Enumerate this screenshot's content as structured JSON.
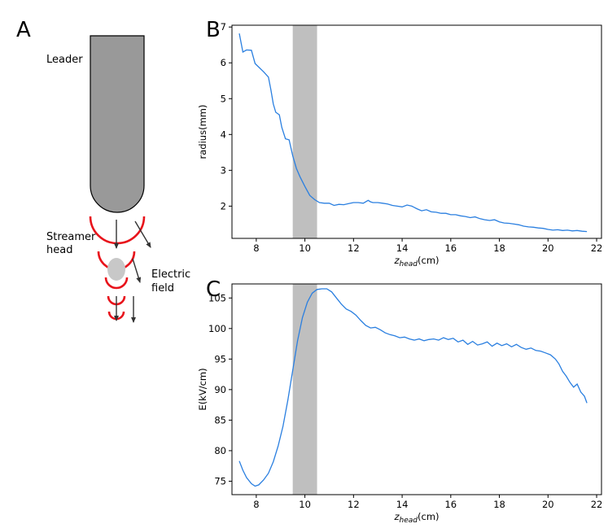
{
  "panels": {
    "a": {
      "letter": "A",
      "labels": {
        "leader": "Leader",
        "streamer_line1": "Streamer",
        "streamer_line2": "head",
        "field_line1": "Electric",
        "field_line2": "field"
      },
      "colors": {
        "leader_fill": "#999999",
        "streamer_arc": "#e8131b",
        "head_fill": "#c8c8c8",
        "arrow": "#333333"
      }
    },
    "b": {
      "letter": "B"
    },
    "c": {
      "letter": "C"
    }
  },
  "chart_data": [
    {
      "type": "line",
      "panel": "B",
      "xlabel_main": "z",
      "xlabel_sub": "head",
      "xlabel_unit": "(cm)",
      "ylabel": "radius(mm)",
      "xlim": [
        7.0,
        22.2
      ],
      "ylim": [
        1.1,
        7.05
      ],
      "xticks": [
        8,
        10,
        12,
        14,
        16,
        18,
        20,
        22
      ],
      "yticks": [
        2,
        3,
        4,
        5,
        6,
        7
      ],
      "shaded_band": [
        9.5,
        10.5
      ],
      "band_color": "#bfbfbf",
      "line_color": "#2a7fe0",
      "grid": false,
      "x": [
        7.3,
        7.45,
        7.6,
        7.8,
        7.95,
        8.1,
        8.3,
        8.5,
        8.6,
        8.7,
        8.8,
        8.95,
        9.05,
        9.2,
        9.35,
        9.5,
        9.65,
        9.8,
        10.0,
        10.2,
        10.4,
        10.6,
        10.8,
        11.0,
        11.2,
        11.4,
        11.6,
        11.8,
        12.0,
        12.2,
        12.4,
        12.6,
        12.7,
        12.8,
        13.0,
        13.2,
        13.4,
        13.6,
        13.8,
        14.0,
        14.2,
        14.4,
        14.6,
        14.8,
        15.0,
        15.2,
        15.4,
        15.6,
        15.8,
        16.0,
        16.2,
        16.4,
        16.6,
        16.8,
        17.0,
        17.2,
        17.4,
        17.6,
        17.8,
        18.0,
        18.2,
        18.4,
        18.6,
        18.8,
        19.0,
        19.2,
        19.4,
        19.6,
        19.8,
        20.0,
        20.2,
        20.4,
        20.6,
        20.8,
        21.0,
        21.2,
        21.4,
        21.6
      ],
      "y": [
        6.82,
        6.3,
        6.36,
        6.35,
        5.98,
        5.88,
        5.75,
        5.6,
        5.25,
        4.85,
        4.62,
        4.55,
        4.2,
        3.88,
        3.85,
        3.4,
        3.05,
        2.82,
        2.55,
        2.3,
        2.18,
        2.1,
        2.08,
        2.08,
        2.02,
        2.05,
        2.04,
        2.07,
        2.1,
        2.1,
        2.08,
        2.16,
        2.12,
        2.1,
        2.1,
        2.08,
        2.06,
        2.02,
        2.0,
        1.98,
        2.03,
        2.0,
        1.93,
        1.87,
        1.9,
        1.84,
        1.83,
        1.8,
        1.8,
        1.76,
        1.76,
        1.73,
        1.71,
        1.68,
        1.7,
        1.65,
        1.62,
        1.6,
        1.62,
        1.56,
        1.53,
        1.52,
        1.5,
        1.48,
        1.44,
        1.42,
        1.41,
        1.39,
        1.38,
        1.35,
        1.33,
        1.34,
        1.32,
        1.33,
        1.31,
        1.32,
        1.3,
        1.29
      ]
    },
    {
      "type": "line",
      "panel": "C",
      "xlabel_main": "z",
      "xlabel_sub": "head",
      "xlabel_unit": "(cm)",
      "ylabel": "E(kV/cm)",
      "xlim": [
        7.0,
        22.2
      ],
      "ylim": [
        72.8,
        107.3
      ],
      "xticks": [
        8,
        10,
        12,
        14,
        16,
        18,
        20,
        22
      ],
      "yticks": [
        75,
        80,
        85,
        90,
        95,
        100,
        105
      ],
      "shaded_band": [
        9.5,
        10.5
      ],
      "band_color": "#bfbfbf",
      "line_color": "#2a7fe0",
      "grid": false,
      "x": [
        7.3,
        7.45,
        7.6,
        7.8,
        7.95,
        8.1,
        8.3,
        8.5,
        8.7,
        8.9,
        9.1,
        9.3,
        9.5,
        9.7,
        9.9,
        10.1,
        10.3,
        10.5,
        10.7,
        10.9,
        11.1,
        11.3,
        11.5,
        11.7,
        11.9,
        12.1,
        12.3,
        12.5,
        12.7,
        12.9,
        13.1,
        13.3,
        13.5,
        13.7,
        13.9,
        14.1,
        14.3,
        14.5,
        14.7,
        14.9,
        15.1,
        15.3,
        15.5,
        15.7,
        15.9,
        16.1,
        16.3,
        16.5,
        16.7,
        16.9,
        17.1,
        17.3,
        17.5,
        17.7,
        17.9,
        18.1,
        18.3,
        18.5,
        18.7,
        18.9,
        19.1,
        19.3,
        19.5,
        19.7,
        19.9,
        20.1,
        20.3,
        20.45,
        20.6,
        20.75,
        20.9,
        21.05,
        21.2,
        21.35,
        21.5,
        21.6
      ],
      "y": [
        78.3,
        76.8,
        75.6,
        74.6,
        74.2,
        74.4,
        75.2,
        76.3,
        78.2,
        80.8,
        84.0,
        88.3,
        93.2,
        98.0,
        101.8,
        104.3,
        105.8,
        106.4,
        106.5,
        106.5,
        106.0,
        105.0,
        104.0,
        103.2,
        102.8,
        102.2,
        101.3,
        100.5,
        100.1,
        100.2,
        99.8,
        99.3,
        99.0,
        98.8,
        98.5,
        98.6,
        98.3,
        98.1,
        98.3,
        98.0,
        98.2,
        98.3,
        98.1,
        98.5,
        98.2,
        98.4,
        97.8,
        98.1,
        97.4,
        97.9,
        97.3,
        97.5,
        97.8,
        97.1,
        97.6,
        97.2,
        97.5,
        97.0,
        97.4,
        96.9,
        96.6,
        96.8,
        96.4,
        96.3,
        96.0,
        95.7,
        95.0,
        94.2,
        93.0,
        92.2,
        91.2,
        90.4,
        90.9,
        89.6,
        88.9,
        87.8
      ]
    }
  ]
}
